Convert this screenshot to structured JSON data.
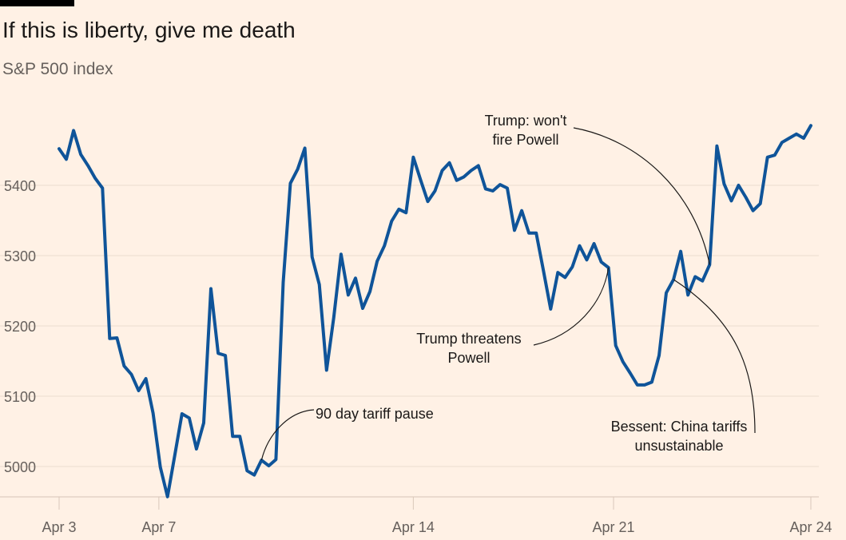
{
  "chart_data": {
    "type": "line",
    "title": "If this is liberty, give me death",
    "subtitle": "S&P 500 index",
    "xlabel": "",
    "ylabel": "",
    "ylim": [
      4950,
      5500
    ],
    "yticks": [
      5000,
      5100,
      5200,
      5300,
      5400
    ],
    "xlim": [
      0,
      104
    ],
    "x_unit": "intraday sample index (Apr 3 – Apr 24)",
    "xticks": [
      {
        "pos": 0,
        "label": "Apr 3"
      },
      {
        "pos": 13.8,
        "label": "Apr 7"
      },
      {
        "pos": 49,
        "label": "Apr 14"
      },
      {
        "pos": 76.7,
        "label": "Apr 21"
      },
      {
        "pos": 104,
        "label": "Apr 24"
      }
    ],
    "grid": true,
    "colors": {
      "line": "#0F5499",
      "background": "#FFF1E5",
      "grid": "#EBDDD0",
      "text": "#66605C"
    },
    "series": [
      {
        "name": "S&P 500",
        "values": [
          5452,
          5437,
          5478,
          5444,
          5428,
          5410,
          5396,
          5182,
          5183,
          5143,
          5131,
          5108,
          5125,
          5076,
          4999,
          4957,
          5016,
          5075,
          5069,
          5025,
          5062,
          5253,
          5161,
          5158,
          5043,
          5043,
          4994,
          4988,
          5009,
          5001,
          5010,
          5262,
          5403,
          5423,
          5453,
          5298,
          5259,
          5137,
          5212,
          5302,
          5244,
          5268,
          5225,
          5249,
          5292,
          5314,
          5349,
          5366,
          5361,
          5440,
          5408,
          5377,
          5392,
          5421,
          5432,
          5407,
          5412,
          5421,
          5428,
          5395,
          5392,
          5401,
          5396,
          5336,
          5364,
          5332,
          5332,
          5279,
          5224,
          5276,
          5269,
          5284,
          5314,
          5294,
          5317,
          5291,
          5283,
          5172,
          5149,
          5133,
          5116,
          5116,
          5120,
          5158,
          5247,
          5266,
          5306,
          5244,
          5270,
          5264,
          5287,
          5456,
          5402,
          5378,
          5400,
          5383,
          5364,
          5374,
          5440,
          5443,
          5461,
          5467,
          5473,
          5467,
          5485
        ]
      }
    ],
    "annotations": [
      {
        "lines": [
          "90 day tariff pause"
        ],
        "at_index": 28
      },
      {
        "lines": [
          "Trump threatens",
          "Powell"
        ],
        "at_index": 76
      },
      {
        "lines": [
          "Trump: won't",
          "fire Powell"
        ],
        "at_index": 90
      },
      {
        "lines": [
          "Bessent: China tariffs",
          "unsustainable"
        ],
        "at_index": 85
      }
    ]
  }
}
